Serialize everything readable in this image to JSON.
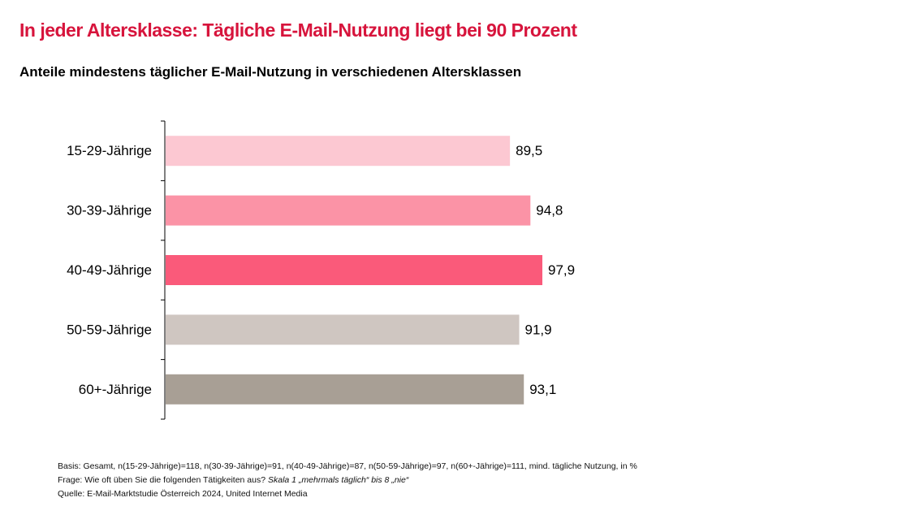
{
  "title": "In jeder Altersklasse: Tägliche E-Mail-Nutzung liegt bei 90 Prozent",
  "subtitle": "Anteile mindestens täglicher E-Mail-Nutzung in verschiedenen Altersklassen",
  "footer": {
    "basis": "Basis: Gesamt, n(15-29-Jährige)=118, n(30-39-Jährige)=91, n(40-49-Jährige)=87, n(50-59-Jährige)=97, n(60+-Jährige)=111, mind. tägliche Nutzung, in %",
    "frage_prefix": "Frage: Wie oft üben Sie die folgenden Tätigkeiten aus? ",
    "frage_italic": "Skala 1 „mehrmals täglich“ bis 8 „nie“",
    "quelle": "Quelle: E-Mail-Marktstudie Österreich 2024, United Internet Media"
  },
  "chart_data": {
    "type": "bar",
    "orientation": "horizontal",
    "categories": [
      "15-29-Jährige",
      "30-39-Jährige",
      "40-49-Jährige",
      "50-59-Jährige",
      "60+-Jährige"
    ],
    "values": [
      89.5,
      94.8,
      97.9,
      91.9,
      93.1
    ],
    "value_labels": [
      "89,5",
      "94,8",
      "97,9",
      "91,9",
      "93,1"
    ],
    "colors": [
      "#fcc8d2",
      "#fb93a6",
      "#fa5a7a",
      "#cfc6c1",
      "#a89f95"
    ],
    "xlim": [
      0,
      100
    ],
    "grid": false,
    "legend": "none"
  }
}
